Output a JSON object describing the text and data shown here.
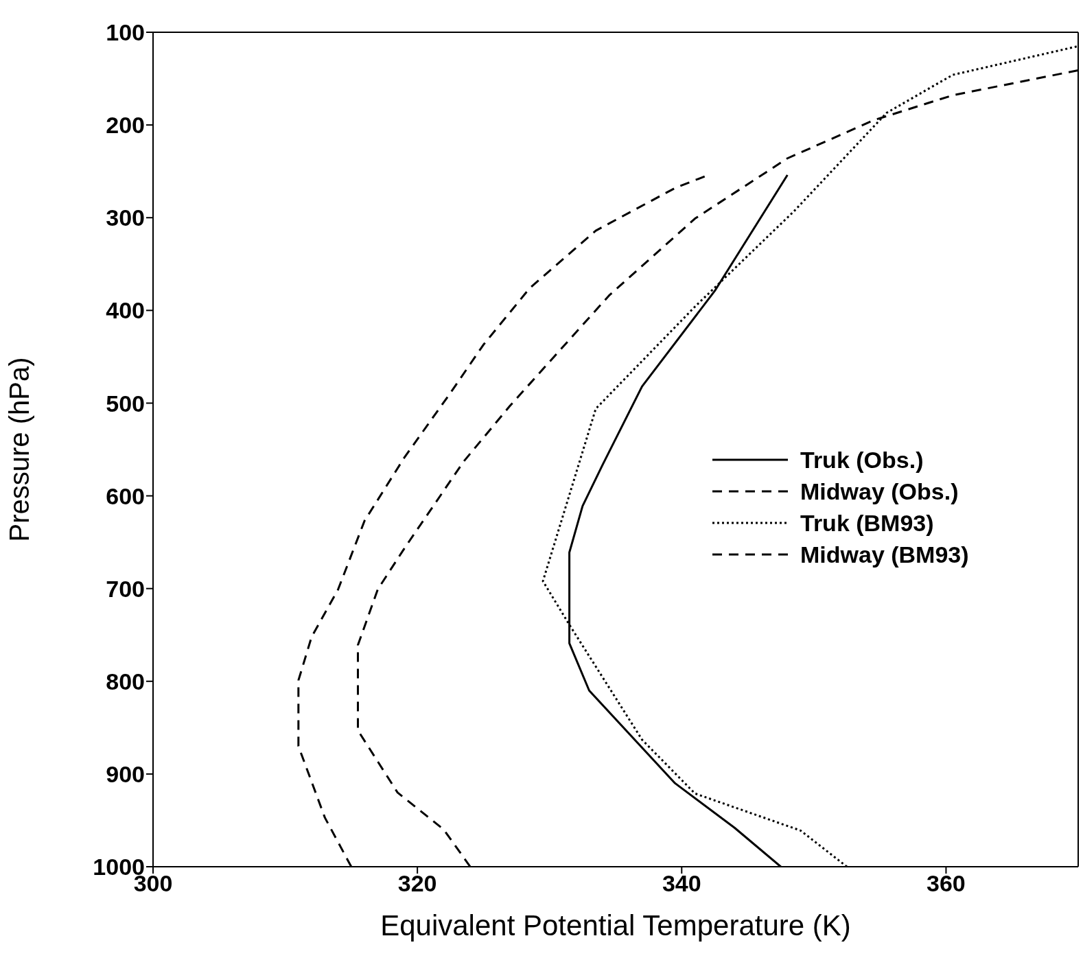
{
  "chart_data": {
    "type": "line",
    "xlabel": "Equivalent Potential Temperature (K)",
    "ylabel": "Pressure (hPa)",
    "xlim": [
      300,
      370
    ],
    "xticks": [
      300,
      320,
      340,
      360
    ],
    "ylim": [
      1000,
      100
    ],
    "yticks": [
      100,
      200,
      300,
      400,
      500,
      600,
      700,
      800,
      900,
      1000
    ],
    "legend": "right",
    "marker": "none",
    "series": [
      {
        "name": "Truk (Obs.)",
        "color": "#000000",
        "line_style": "solid",
        "x": [
          347.5,
          344,
          339.5,
          333,
          331.5,
          331.5,
          331.5,
          332.5,
          334,
          337,
          342.5,
          348
        ],
        "values": [
          1000,
          958,
          910,
          810,
          759,
          702,
          661,
          611,
          567,
          482,
          379,
          254
        ]
      },
      {
        "name": "Midway (Obs.)",
        "color": "#000000",
        "line_style": "dashed",
        "x": [
          315,
          313,
          311,
          311,
          312,
          314,
          316,
          319,
          322.5,
          325,
          328.5,
          333.5,
          339.5,
          342
        ],
        "values": [
          1000,
          947,
          870,
          799,
          752,
          701,
          627,
          559,
          489,
          437,
          376,
          314,
          268,
          254
        ]
      },
      {
        "name": "Truk (BM93)",
        "color": "#000000",
        "line_style": "dotted",
        "x": [
          352.5,
          349,
          341,
          337,
          331.5,
          329.5,
          333.5,
          341,
          348.5,
          355.5,
          360.5,
          370
        ],
        "values": [
          1000,
          961,
          921,
          863,
          739,
          692,
          506,
          396,
          293,
          187,
          146,
          115
        ]
      },
      {
        "name": "Midway (BM93)",
        "color": "#000000",
        "line_style": "dashed",
        "x": [
          324,
          322,
          318.5,
          315.5,
          315.5,
          315.5,
          315.5,
          317,
          319,
          323.5,
          327,
          334.5,
          341,
          348,
          354.5,
          360.5,
          370
        ],
        "values": [
          1000,
          960,
          920,
          853,
          842,
          776,
          761,
          701,
          657,
          563,
          503,
          384,
          301,
          236,
          195,
          168,
          141
        ]
      }
    ]
  }
}
